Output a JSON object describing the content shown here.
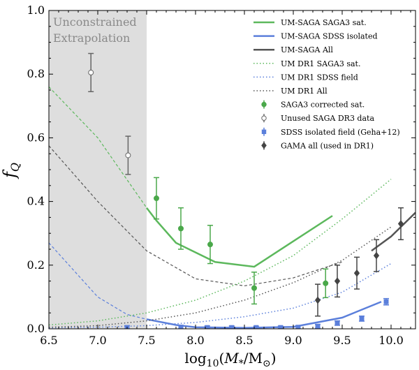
{
  "chart_data": {
    "type": "line",
    "xlabel": "log₁₀ (M₊/M⊙)",
    "xlabel_parts": {
      "pre": "log",
      "sub": "10",
      "math": "M",
      "math_sub": "*",
      "unit": "M",
      "unit_sub": "⊙"
    },
    "ylabel": "f",
    "ylabel_sub": "Q",
    "xlim": [
      6.5,
      10.25
    ],
    "ylim": [
      0.0,
      1.0
    ],
    "xticks": [
      "6.5",
      "7.0",
      "7.5",
      "8.0",
      "8.5",
      "9.0",
      "9.5",
      "10.0"
    ],
    "yticks": [
      "0.0",
      "0.2",
      "0.4",
      "0.6",
      "0.8",
      "1.0"
    ],
    "shaded_region": {
      "x_from": 6.5,
      "x_to": 7.5,
      "label_line1": "Unconstrained",
      "label_line2": "Extrapolation"
    },
    "legend_position": "top-right",
    "series": [
      {
        "name": "UM-SAGA SAGA3 sat.",
        "kind": "line",
        "style": "solid",
        "width": 2.5,
        "color": "#5cb85c",
        "dashed_below": 7.5,
        "x": [
          6.5,
          7.0,
          7.5,
          7.6,
          7.8,
          8.2,
          8.6,
          9.0,
          9.4
        ],
        "y": [
          0.76,
          0.6,
          0.38,
          0.34,
          0.27,
          0.21,
          0.195,
          0.275,
          0.355
        ]
      },
      {
        "name": "UM-SAGA SDSS isolated",
        "kind": "line",
        "style": "solid",
        "width": 2.5,
        "color": "#5b7fdb",
        "dashed_below": 7.5,
        "x": [
          6.5,
          7.0,
          7.3,
          7.5,
          7.8,
          8.0,
          8.5,
          9.0,
          9.5,
          9.9
        ],
        "y": [
          0.27,
          0.1,
          0.045,
          0.03,
          0.012,
          0.005,
          0.003,
          0.006,
          0.035,
          0.085
        ]
      },
      {
        "name": "UM-SAGA All",
        "kind": "line",
        "style": "solid",
        "width": 2.5,
        "color": "#555555",
        "dashed_below": 9.6,
        "x": [
          6.5,
          7.0,
          7.5,
          8.0,
          8.5,
          9.0,
          9.5,
          9.8,
          10.0,
          10.25
        ],
        "y": [
          0.575,
          0.4,
          0.245,
          0.157,
          0.135,
          0.16,
          0.21,
          0.245,
          0.29,
          0.365
        ]
      },
      {
        "name": "UM DR1 SAGA3 sat.",
        "kind": "line",
        "style": "dotted",
        "width": 1.5,
        "color": "#5cb85c",
        "x": [
          6.5,
          7.0,
          7.5,
          8.0,
          8.5,
          9.0,
          9.5,
          10.0
        ],
        "y": [
          0.012,
          0.025,
          0.05,
          0.09,
          0.15,
          0.23,
          0.345,
          0.47
        ]
      },
      {
        "name": "UM DR1 SDSS field",
        "kind": "line",
        "style": "dotted",
        "width": 1.5,
        "color": "#5b7fdb",
        "x": [
          6.5,
          7.0,
          7.5,
          8.0,
          8.5,
          9.0,
          9.5,
          10.0
        ],
        "y": [
          0.003,
          0.005,
          0.01,
          0.02,
          0.038,
          0.065,
          0.115,
          0.205
        ]
      },
      {
        "name": "UM DR1 All",
        "kind": "line",
        "style": "dotted",
        "width": 1.5,
        "color": "#555555",
        "x": [
          6.5,
          7.0,
          7.5,
          8.0,
          8.5,
          9.0,
          9.5,
          10.0
        ],
        "y": [
          0.005,
          0.01,
          0.025,
          0.05,
          0.09,
          0.145,
          0.215,
          0.32
        ]
      },
      {
        "name": "SAGA3 corrected sat.",
        "kind": "points",
        "marker": "circle",
        "color": "#4aa84a",
        "fill": "#4aa84a",
        "x": [
          7.6,
          7.85,
          8.15,
          8.6,
          9.33
        ],
        "y": [
          0.41,
          0.315,
          0.265,
          0.128,
          0.143
        ],
        "err": [
          0.065,
          0.065,
          0.06,
          0.05,
          0.045
        ]
      },
      {
        "name": "Unused SAGA DR3 data",
        "kind": "points",
        "marker": "circle",
        "color": "#666666",
        "fill": "#ffffff",
        "x": [
          6.93,
          7.31
        ],
        "y": [
          0.805,
          0.545
        ],
        "err": [
          0.06,
          0.06
        ]
      },
      {
        "name": "SDSS isolated field (Geha+12)",
        "kind": "points",
        "marker": "square",
        "color": "#5b7fdb",
        "fill": "#5b7fdb",
        "x": [
          7.3,
          7.85,
          8.12,
          8.37,
          8.62,
          8.87,
          9.05,
          9.25,
          9.45,
          9.7,
          9.95
        ],
        "y": [
          0.004,
          0.005,
          0.004,
          0.004,
          0.004,
          0.004,
          0.005,
          0.008,
          0.018,
          0.032,
          0.085
        ],
        "err": [
          0.006,
          0.006,
          0.005,
          0.005,
          0.004,
          0.004,
          0.005,
          0.006,
          0.007,
          0.008,
          0.01
        ]
      },
      {
        "name": "GAMA all (used in DR1)",
        "kind": "points",
        "marker": "diamond",
        "color": "#444444",
        "fill": "#444444",
        "x": [
          9.25,
          9.45,
          9.65,
          9.85,
          10.1
        ],
        "y": [
          0.09,
          0.15,
          0.175,
          0.23,
          0.33
        ],
        "err": [
          0.05,
          0.05,
          0.05,
          0.05,
          0.05
        ]
      }
    ]
  }
}
